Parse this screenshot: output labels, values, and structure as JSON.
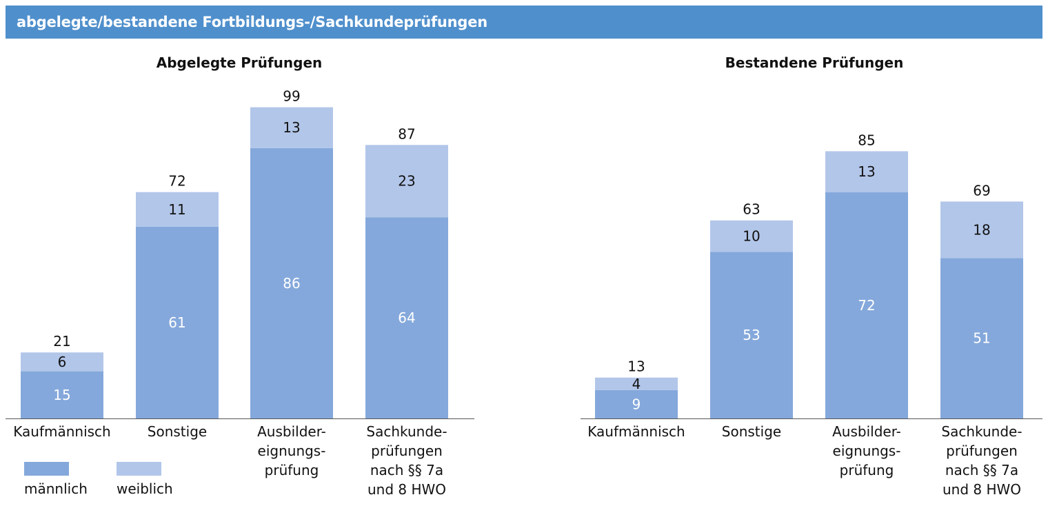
{
  "header": {
    "title": "abgelegte/bestandene Fortbildungs-/Sachkundeprüfungen"
  },
  "colors": {
    "header_bg": "#4f8fcc",
    "maennlich": "#84a8db",
    "weiblich": "#b2c6e9",
    "axis": "#555555"
  },
  "legend": {
    "items": [
      "männlich",
      "weiblich"
    ],
    "placement": "bottom-left"
  },
  "chart_data": [
    {
      "type": "bar",
      "stacked": true,
      "title": "Abgelegte Prüfungen",
      "categories": [
        [
          "Kaufmännisch"
        ],
        [
          "Sonstige"
        ],
        [
          "Ausbilder-",
          "eignungs-",
          "prüfung"
        ],
        [
          "Sachkunde-",
          "prüfungen",
          "nach §§ 7a",
          "und 8 HWO"
        ]
      ],
      "series": [
        {
          "name": "männlich",
          "values": [
            15,
            61,
            86,
            64
          ]
        },
        {
          "name": "weiblich",
          "values": [
            6,
            11,
            13,
            23
          ]
        }
      ],
      "totals": [
        21,
        72,
        99,
        87
      ]
    },
    {
      "type": "bar",
      "stacked": true,
      "title": "Bestandene Prüfungen",
      "categories": [
        [
          "Kaufmännisch"
        ],
        [
          "Sonstige"
        ],
        [
          "Ausbilder-",
          "eignungs-",
          "prüfung"
        ],
        [
          "Sachkunde-",
          "prüfungen",
          "nach §§ 7a",
          "und 8 HWO"
        ]
      ],
      "series": [
        {
          "name": "männlich",
          "values": [
            9,
            53,
            72,
            51
          ]
        },
        {
          "name": "weiblich",
          "values": [
            4,
            10,
            13,
            18
          ]
        }
      ],
      "totals": [
        13,
        63,
        85,
        69
      ]
    }
  ]
}
